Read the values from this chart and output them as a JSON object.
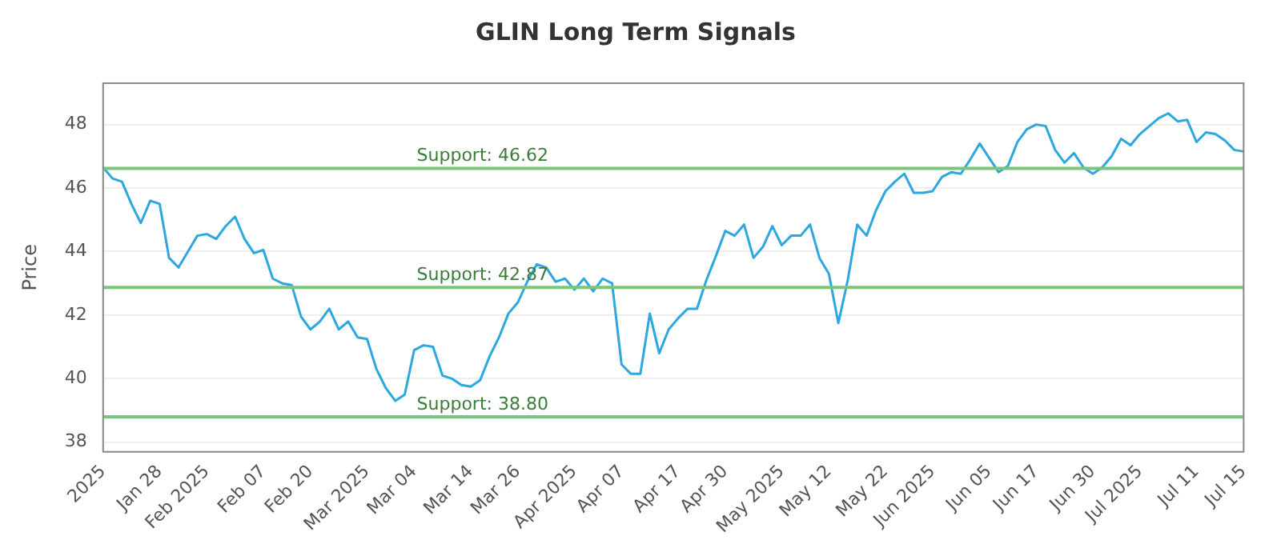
{
  "chart_data": {
    "type": "line",
    "title": "GLIN Long Term Signals",
    "ylabel": "Price",
    "categories": [
      "2025",
      null,
      null,
      null,
      null,
      null,
      "Jan 28",
      null,
      null,
      null,
      null,
      "Feb 2025",
      null,
      null,
      null,
      null,
      null,
      "Feb 07",
      null,
      null,
      null,
      null,
      "Feb 20",
      null,
      null,
      null,
      null,
      null,
      "Mar 2025",
      null,
      null,
      null,
      null,
      "Mar 04",
      null,
      null,
      null,
      null,
      null,
      "Mar 14",
      null,
      null,
      null,
      null,
      "Mar 26",
      null,
      null,
      null,
      null,
      null,
      "Apr 2025",
      null,
      null,
      null,
      null,
      "Apr 07",
      null,
      null,
      null,
      null,
      null,
      "Apr 17",
      null,
      null,
      null,
      null,
      "Apr 30",
      null,
      null,
      null,
      null,
      null,
      "May 2025",
      null,
      null,
      null,
      null,
      "May 12",
      null,
      null,
      null,
      null,
      null,
      "May 22",
      null,
      null,
      null,
      null,
      "Jun 2025",
      null,
      null,
      null,
      null,
      null,
      "Jun 05",
      null,
      null,
      null,
      null,
      "Jun 17",
      null,
      null,
      null,
      null,
      null,
      "Jun 30",
      null,
      null,
      null,
      null,
      "Jul 2025",
      null,
      null,
      null,
      null,
      null,
      "Jul 11",
      null,
      null,
      null,
      null,
      "Jul 15"
    ],
    "series": [
      {
        "color": "#2ca7e0",
        "values": [
          46.65,
          46.3,
          46.2,
          45.5,
          44.9,
          45.6,
          45.5,
          43.8,
          43.5,
          44,
          44.5,
          44.55,
          44.4,
          44.8,
          45.1,
          44.4,
          43.95,
          44.05,
          43.15,
          43,
          42.95,
          41.95,
          41.55,
          41.8,
          42.2,
          41.55,
          41.8,
          41.3,
          41.25,
          40.3,
          39.7,
          39.3,
          39.5,
          40.9,
          41.05,
          41,
          40.1,
          40,
          39.8,
          39.75,
          39.95,
          40.7,
          41.3,
          42.05,
          42.4,
          43.05,
          43.6,
          43.5,
          43.05,
          43.15,
          42.8,
          43.15,
          42.75,
          43.15,
          43,
          40.45,
          40.15,
          40.15,
          42.05,
          40.8,
          41.55,
          41.9,
          42.2,
          42.2,
          43.1,
          43.85,
          44.65,
          44.5,
          44.85,
          43.8,
          44.15,
          44.8,
          44.2,
          44.5,
          44.5,
          44.85,
          43.8,
          43.3,
          41.75,
          43.1,
          44.85,
          44.5,
          45.3,
          45.9,
          46.2,
          46.45,
          45.85,
          45.85,
          45.9,
          46.35,
          46.5,
          46.45,
          46.9,
          47.4,
          46.95,
          46.5,
          46.7,
          47.45,
          47.85,
          48,
          47.95,
          47.2,
          46.8,
          47.1,
          46.65,
          46.45,
          46.65,
          47,
          47.55,
          47.35,
          47.7,
          47.95,
          48.2,
          48.35,
          48.1,
          48.15,
          47.45,
          47.75,
          47.7,
          47.5,
          47.2,
          47.15
        ]
      }
    ],
    "ylim": [
      37.7,
      49.3
    ],
    "yticks": [
      38,
      40,
      42,
      44,
      46,
      48
    ],
    "grid": "y",
    "marker": "none",
    "line_style": "solid",
    "ref_lines": [
      {
        "axis": "y",
        "value": 46.62,
        "label": "Support: 46.62",
        "color": "#7cc47c"
      },
      {
        "axis": "y",
        "value": 42.87,
        "label": "Support: 42.87",
        "color": "#7cc47c"
      },
      {
        "axis": "y",
        "value": 38.8,
        "label": "Support: 38.80",
        "color": "#7cc47c"
      }
    ]
  }
}
